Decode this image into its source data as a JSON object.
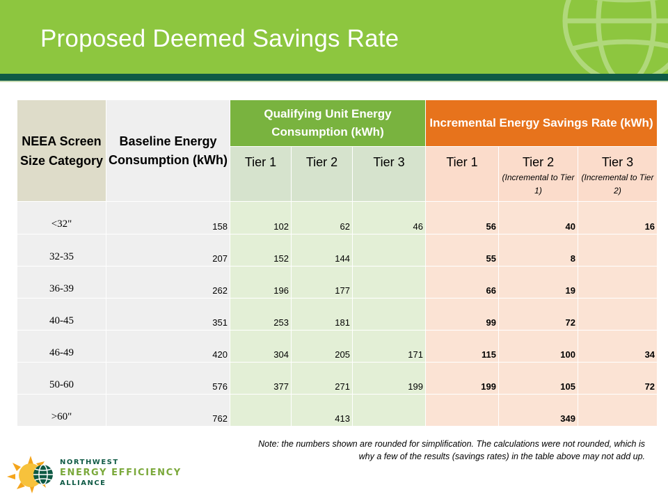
{
  "title": "Proposed Deemed Savings Rate",
  "colors": {
    "header_green": "#8dc63f",
    "rule_dark_green": "#0f5a45",
    "qualifying_green": "#79b33f",
    "incremental_orange": "#e7731c"
  },
  "table": {
    "headers": {
      "category": "NEEA Screen Size Category",
      "baseline": "Baseline Energy Consumption (kWh)",
      "qualifying": "Qualifying Unit Energy Consumption (kWh)",
      "incremental": "Incremental Energy Savings Rate (kWh)"
    },
    "tiers": {
      "qualifying": [
        "Tier 1",
        "Tier 2",
        "Tier 3"
      ],
      "incremental": [
        {
          "label": "Tier 1",
          "note": ""
        },
        {
          "label": "Tier 2",
          "note": "(Incremental to Tier 1)"
        },
        {
          "label": "Tier 3",
          "note": "(Incremental to Tier 2)"
        }
      ]
    },
    "rows": [
      {
        "category": "<32\"",
        "baseline": "158",
        "qual": [
          "102",
          "62",
          "46"
        ],
        "incr": [
          "56",
          "40",
          "16"
        ]
      },
      {
        "category": "32-35",
        "baseline": "207",
        "qual": [
          "152",
          "144",
          ""
        ],
        "incr": [
          "55",
          "8",
          ""
        ]
      },
      {
        "category": "36-39",
        "baseline": "262",
        "qual": [
          "196",
          "177",
          ""
        ],
        "incr": [
          "66",
          "19",
          ""
        ]
      },
      {
        "category": "40-45",
        "baseline": "351",
        "qual": [
          "253",
          "181",
          ""
        ],
        "incr": [
          "99",
          "72",
          ""
        ]
      },
      {
        "category": "46-49",
        "baseline": "420",
        "qual": [
          "304",
          "205",
          "171"
        ],
        "incr": [
          "115",
          "100",
          "34"
        ]
      },
      {
        "category": "50-60",
        "baseline": "576",
        "qual": [
          "377",
          "271",
          "199"
        ],
        "incr": [
          "199",
          "105",
          "72"
        ]
      },
      {
        "category": ">60\"",
        "baseline": "762",
        "qual": [
          "",
          "413",
          ""
        ],
        "incr": [
          "",
          "349",
          ""
        ]
      }
    ]
  },
  "note": "Note: the numbers shown are rounded for simplification. The calculations were not rounded, which is why a few of the results (savings rates) in the table above may not add up.",
  "logo": {
    "line1": "NORTHWEST",
    "line2": "ENERGY EFFICIENCY",
    "line3": "ALLIANCE"
  }
}
